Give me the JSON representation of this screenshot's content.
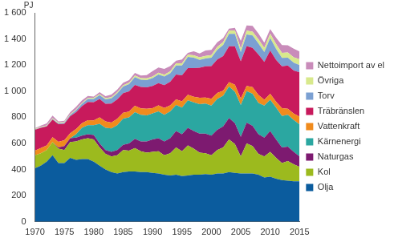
{
  "chart_data": {
    "type": "area",
    "stacked": true,
    "y_label": "PJ",
    "legend": "right",
    "grid": false,
    "x": [
      1970,
      1971,
      1972,
      1973,
      1974,
      1975,
      1976,
      1977,
      1978,
      1979,
      1980,
      1981,
      1982,
      1983,
      1984,
      1985,
      1986,
      1987,
      1988,
      1989,
      1990,
      1991,
      1992,
      1993,
      1994,
      1995,
      1996,
      1997,
      1998,
      1999,
      2000,
      2001,
      2002,
      2003,
      2004,
      2005,
      2006,
      2007,
      2008,
      2009,
      2010,
      2011,
      2012,
      2013,
      2014,
      2015
    ],
    "xlim": [
      1970,
      2015
    ],
    "xticks": [
      1970,
      1975,
      1980,
      1985,
      1990,
      1995,
      2000,
      2005,
      2010,
      2015
    ],
    "ylim": [
      0,
      1600
    ],
    "yticks": [
      0,
      200,
      400,
      600,
      800,
      {
        "value": 1000,
        "label": "1 000"
      },
      {
        "value": 1200,
        "label": "1 200"
      },
      {
        "value": 1400,
        "label": "1 400"
      },
      {
        "value": 1600,
        "label": "1 600"
      }
    ],
    "series": [
      {
        "name": "Olja",
        "color": "#0b5c9e",
        "values": [
          410,
          430,
          460,
          510,
          450,
          450,
          490,
          475,
          480,
          480,
          460,
          430,
          400,
          380,
          370,
          380,
          385,
          385,
          380,
          380,
          375,
          370,
          360,
          355,
          360,
          350,
          355,
          360,
          360,
          365,
          360,
          370,
          370,
          380,
          375,
          370,
          370,
          370,
          360,
          340,
          345,
          330,
          320,
          315,
          310,
          310
        ]
      },
      {
        "name": "Kol",
        "color": "#9cba1e",
        "values": [
          100,
          95,
          90,
          100,
          110,
          100,
          120,
          140,
          150,
          160,
          170,
          140,
          120,
          120,
          140,
          170,
          160,
          180,
          160,
          150,
          160,
          170,
          150,
          170,
          210,
          190,
          230,
          200,
          170,
          160,
          150,
          180,
          200,
          250,
          220,
          130,
          230,
          210,
          160,
          160,
          190,
          160,
          130,
          150,
          130,
          110
        ]
      },
      {
        "name": "Naturgas",
        "color": "#7d1a70",
        "values": [
          0,
          0,
          0,
          0,
          10,
          30,
          30,
          30,
          30,
          30,
          35,
          30,
          30,
          35,
          40,
          40,
          55,
          70,
          75,
          85,
          95,
          100,
          105,
          115,
          125,
          130,
          135,
          135,
          145,
          150,
          150,
          155,
          160,
          165,
          160,
          150,
          160,
          155,
          150,
          145,
          160,
          140,
          120,
          110,
          95,
          80
        ]
      },
      {
        "name": "Kärnenergi",
        "color": "#2ba7a1",
        "values": [
          0,
          0,
          0,
          0,
          0,
          0,
          0,
          25,
          60,
          70,
          75,
          150,
          170,
          180,
          190,
          200,
          200,
          205,
          205,
          200,
          200,
          205,
          205,
          205,
          200,
          205,
          210,
          220,
          225,
          230,
          230,
          235,
          235,
          240,
          240,
          245,
          240,
          245,
          240,
          245,
          240,
          245,
          240,
          245,
          245,
          245
        ]
      },
      {
        "name": "Vattenkraft",
        "color": "#f08b1d",
        "values": [
          35,
          40,
          35,
          38,
          42,
          45,
          38,
          40,
          35,
          38,
          36,
          50,
          48,
          45,
          48,
          45,
          44,
          48,
          48,
          50,
          40,
          47,
          52,
          47,
          42,
          47,
          42,
          42,
          50,
          46,
          52,
          47,
          38,
          34,
          54,
          49,
          40,
          51,
          61,
          45,
          46,
          44,
          60,
          46,
          48,
          60
        ]
      },
      {
        "name": "Träbränslen",
        "color": "#c81a5c",
        "values": [
          160,
          155,
          145,
          135,
          135,
          125,
          130,
          130,
          130,
          140,
          140,
          140,
          135,
          145,
          150,
          150,
          155,
          160,
          165,
          165,
          170,
          170,
          175,
          180,
          190,
          200,
          205,
          220,
          230,
          240,
          250,
          255,
          265,
          275,
          295,
          285,
          305,
          300,
          310,
          290,
          330,
          320,
          320,
          330,
          330,
          340
        ]
      },
      {
        "name": "Torv",
        "color": "#7ba0d2",
        "values": [
          2,
          2,
          3,
          4,
          6,
          8,
          10,
          14,
          18,
          22,
          25,
          30,
          35,
          40,
          45,
          50,
          55,
          60,
          55,
          55,
          60,
          65,
          65,
          65,
          70,
          75,
          85,
          80,
          60,
          60,
          65,
          75,
          85,
          95,
          95,
          70,
          90,
          95,
          85,
          75,
          95,
          85,
          65,
          60,
          60,
          55
        ]
      },
      {
        "name": "Övriga",
        "color": "#d8e98c",
        "values": [
          5,
          5,
          5,
          6,
          6,
          6,
          6,
          7,
          7,
          8,
          8,
          8,
          9,
          9,
          10,
          10,
          11,
          12,
          12,
          13,
          13,
          14,
          14,
          15,
          16,
          16,
          17,
          18,
          19,
          20,
          20,
          22,
          23,
          25,
          26,
          27,
          28,
          30,
          31,
          32,
          35,
          36,
          38,
          40,
          42,
          44
        ]
      },
      {
        "name": "Nettoimport av el",
        "color": "#c98cba",
        "values": [
          5,
          10,
          15,
          20,
          10,
          10,
          15,
          20,
          20,
          15,
          10,
          15,
          15,
          20,
          20,
          20,
          20,
          20,
          20,
          25,
          40,
          40,
          45,
          40,
          20,
          30,
          15,
          30,
          30,
          40,
          40,
          35,
          30,
          15,
          20,
          60,
          40,
          45,
          45,
          40,
          35,
          50,
          60,
          55,
          65,
          60
        ]
      }
    ]
  }
}
